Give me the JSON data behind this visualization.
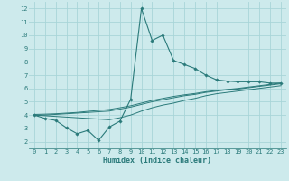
{
  "xlabel": "Humidex (Indice chaleur)",
  "bg_color": "#cdeaec",
  "grid_color": "#a8d5d8",
  "line_color": "#2a7a7a",
  "xlim": [
    -0.5,
    23.5
  ],
  "ylim": [
    1.5,
    12.5
  ],
  "xticks": [
    0,
    1,
    2,
    3,
    4,
    5,
    6,
    7,
    8,
    9,
    10,
    11,
    12,
    13,
    14,
    15,
    16,
    17,
    18,
    19,
    20,
    21,
    22,
    23
  ],
  "yticks": [
    2,
    3,
    4,
    5,
    6,
    7,
    8,
    9,
    10,
    11,
    12
  ],
  "series": {
    "line1_x": [
      0,
      1,
      2,
      3,
      4,
      5,
      6,
      7,
      8,
      9,
      10,
      11,
      12,
      13,
      14,
      15,
      16,
      17,
      18,
      19,
      20,
      21,
      22,
      23
    ],
    "line1_y": [
      4.0,
      3.75,
      3.6,
      3.05,
      2.6,
      2.85,
      2.1,
      3.1,
      3.55,
      5.2,
      12.0,
      9.6,
      10.0,
      8.1,
      7.8,
      7.5,
      7.0,
      6.65,
      6.55,
      6.5,
      6.5,
      6.5,
      6.4,
      6.4
    ],
    "line2_x": [
      0,
      1,
      2,
      3,
      4,
      5,
      6,
      7,
      8,
      9,
      10,
      11,
      12,
      13,
      14,
      15,
      16,
      17,
      18,
      19,
      20,
      21,
      22,
      23
    ],
    "line2_y": [
      4.0,
      3.95,
      3.9,
      3.85,
      3.8,
      3.75,
      3.7,
      3.65,
      3.8,
      4.0,
      4.3,
      4.55,
      4.75,
      4.9,
      5.1,
      5.25,
      5.45,
      5.6,
      5.7,
      5.8,
      5.9,
      6.0,
      6.1,
      6.2
    ],
    "line3_x": [
      0,
      1,
      2,
      3,
      4,
      5,
      6,
      7,
      8,
      9,
      10,
      11,
      12,
      13,
      14,
      15,
      16,
      17,
      18,
      19,
      20,
      21,
      22,
      23
    ],
    "line3_y": [
      4.0,
      4.0,
      4.05,
      4.1,
      4.15,
      4.2,
      4.25,
      4.3,
      4.45,
      4.6,
      4.8,
      5.0,
      5.15,
      5.3,
      5.45,
      5.55,
      5.7,
      5.8,
      5.9,
      5.95,
      6.05,
      6.15,
      6.25,
      6.35
    ],
    "line4_x": [
      0,
      1,
      2,
      3,
      4,
      5,
      6,
      7,
      8,
      9,
      10,
      11,
      12,
      13,
      14,
      15,
      16,
      17,
      18,
      19,
      20,
      21,
      22,
      23
    ],
    "line4_y": [
      4.05,
      4.07,
      4.1,
      4.15,
      4.2,
      4.28,
      4.35,
      4.42,
      4.55,
      4.7,
      4.9,
      5.1,
      5.25,
      5.4,
      5.52,
      5.62,
      5.75,
      5.85,
      5.92,
      6.0,
      6.1,
      6.2,
      6.3,
      6.4
    ]
  }
}
